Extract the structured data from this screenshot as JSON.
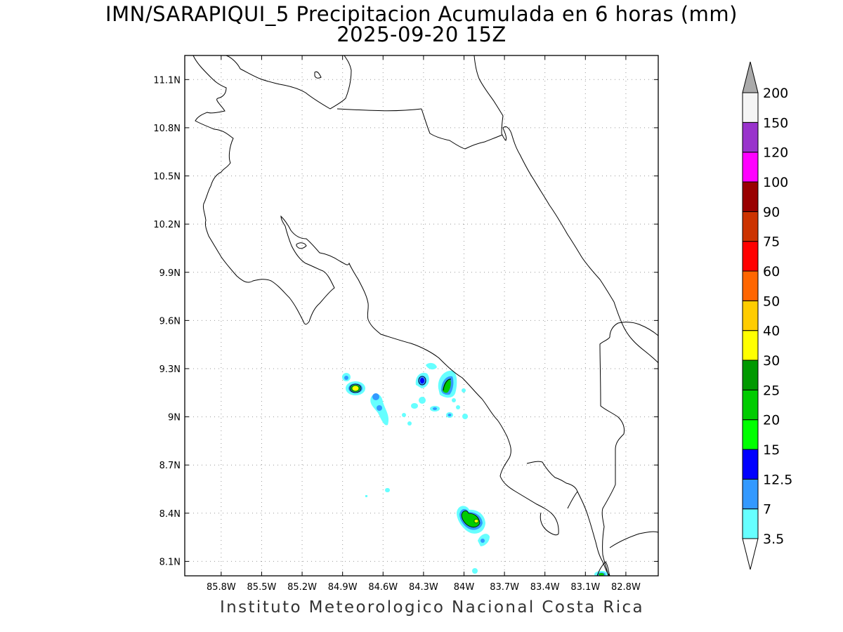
{
  "title": {
    "line1": "IMN/SARAPIQUI_5 Precipitacion Acumulada en 6 horas (mm)",
    "line2": "2025-09-20 15Z"
  },
  "footer": "Instituto Meteorologico Nacional Costa Rica",
  "map": {
    "lon_range": [
      -86.07,
      -82.56
    ],
    "lat_range": [
      8.01,
      11.25
    ],
    "x_ticks": [
      {
        "lon": -85.8,
        "label": "85.8W"
      },
      {
        "lon": -85.5,
        "label": "85.5W"
      },
      {
        "lon": -85.2,
        "label": "85.2W"
      },
      {
        "lon": -84.9,
        "label": "84.9W"
      },
      {
        "lon": -84.6,
        "label": "84.6W"
      },
      {
        "lon": -84.3,
        "label": "84.3W"
      },
      {
        "lon": -84.0,
        "label": "84W"
      },
      {
        "lon": -83.7,
        "label": "83.7W"
      },
      {
        "lon": -83.4,
        "label": "83.4W"
      },
      {
        "lon": -83.1,
        "label": "83.1W"
      },
      {
        "lon": -82.8,
        "label": "82.8W"
      }
    ],
    "y_ticks": [
      {
        "lat": 11.1,
        "label": "11.1N"
      },
      {
        "lat": 10.8,
        "label": "10.8N"
      },
      {
        "lat": 10.5,
        "label": "10.5N"
      },
      {
        "lat": 10.2,
        "label": "10.2N"
      },
      {
        "lat": 9.9,
        "label": "9.9N"
      },
      {
        "lat": 9.6,
        "label": "9.6N"
      },
      {
        "lat": 9.3,
        "label": "9.3N"
      },
      {
        "lat": 9.0,
        "label": "9N"
      },
      {
        "lat": 8.7,
        "label": "8.7N"
      },
      {
        "lat": 8.4,
        "label": "8.4N"
      },
      {
        "lat": 8.1,
        "label": "8.1N"
      }
    ],
    "grid": "dotted"
  },
  "colorbar": {
    "levels": [
      "3.5",
      "7",
      "12.5",
      "15",
      "20",
      "25",
      "30",
      "40",
      "50",
      "60",
      "75",
      "90",
      "100",
      "120",
      "150",
      "200"
    ],
    "colors": [
      "#66ffff",
      "#3399ff",
      "#0000ff",
      "#00ff00",
      "#00cc00",
      "#009900",
      "#ffff00",
      "#ffcc00",
      "#ff6600",
      "#ff0000",
      "#cc3300",
      "#990000",
      "#ff00ff",
      "#9933cc",
      "#f5f5f5"
    ],
    "over_color": "#aaaaaa",
    "under_color": "#ffffff"
  },
  "precip_cells": [
    {
      "lon": -84.76,
      "lat": 9.18,
      "peak": "30"
    },
    {
      "lon": -84.79,
      "lat": 9.26,
      "peak": "7"
    },
    {
      "lon": -84.57,
      "lat": 9.12,
      "peak": "7"
    },
    {
      "lon": -84.55,
      "lat": 9.05,
      "peak": "7"
    },
    {
      "lon": -84.23,
      "lat": 9.24,
      "peak": "12.5"
    },
    {
      "lon": -84.05,
      "lat": 9.22,
      "peak": "20"
    },
    {
      "lon": -84.17,
      "lat": 9.06,
      "peak": "3.5"
    },
    {
      "lon": -84.22,
      "lat": 9.12,
      "peak": "3.5"
    },
    {
      "lon": -84.02,
      "lat": 9.03,
      "peak": "7"
    },
    {
      "lon": -83.88,
      "lat": 8.36,
      "peak": "30"
    },
    {
      "lon": -83.81,
      "lat": 8.24,
      "peak": "7"
    },
    {
      "lon": -82.82,
      "lat": 8.02,
      "peak": "12.5"
    }
  ]
}
